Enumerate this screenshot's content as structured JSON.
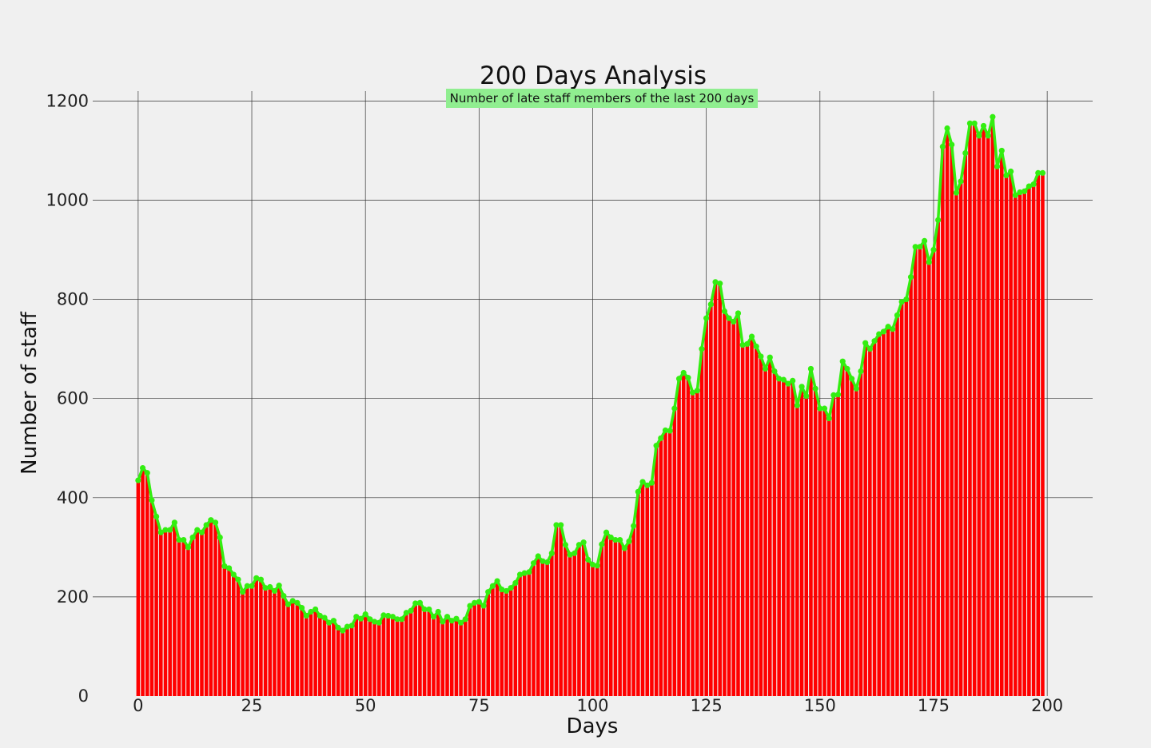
{
  "chart_data": {
    "type": "bar",
    "title": "200 Days Analysis",
    "subtitle": "Number of late staff members of the last 200 days",
    "xlabel": "Days",
    "ylabel": "Number of staff",
    "xlim": [
      -10,
      210
    ],
    "ylim": [
      0,
      1220
    ],
    "xticks": [
      0,
      25,
      50,
      75,
      100,
      125,
      150,
      175,
      200
    ],
    "yticks": [
      0,
      200,
      400,
      600,
      800,
      1000,
      1200
    ],
    "grid": true,
    "bar_color": "#ff0000",
    "line_color": "#33ee11",
    "subtitle_bg": "#90ee90",
    "background": "#f0f0f0",
    "x_start": 0,
    "values": [
      435,
      460,
      450,
      395,
      362,
      330,
      335,
      335,
      350,
      315,
      315,
      300,
      320,
      335,
      330,
      345,
      355,
      350,
      320,
      262,
      258,
      245,
      235,
      210,
      222,
      222,
      238,
      235,
      218,
      220,
      212,
      223,
      202,
      185,
      192,
      188,
      178,
      162,
      170,
      175,
      162,
      158,
      148,
      152,
      138,
      132,
      140,
      142,
      160,
      156,
      165,
      155,
      150,
      148,
      163,
      162,
      160,
      155,
      155,
      168,
      172,
      187,
      188,
      175,
      175,
      160,
      170,
      150,
      160,
      152,
      156,
      148,
      155,
      182,
      188,
      190,
      182,
      210,
      222,
      232,
      215,
      212,
      218,
      228,
      245,
      248,
      250,
      268,
      282,
      272,
      270,
      288,
      345,
      345,
      305,
      285,
      288,
      305,
      310,
      275,
      265,
      263,
      306,
      330,
      320,
      315,
      315,
      298,
      312,
      343,
      412,
      432,
      425,
      430,
      505,
      520,
      536,
      535,
      580,
      640,
      652,
      642,
      612,
      616,
      700,
      762,
      790,
      835,
      832,
      776,
      762,
      755,
      772,
      708,
      710,
      725,
      705,
      685,
      660,
      683,
      655,
      640,
      638,
      630,
      636,
      586,
      624,
      605,
      660,
      620,
      580,
      580,
      560,
      607,
      608,
      675,
      660,
      640,
      620,
      655,
      712,
      700,
      716,
      730,
      735,
      745,
      740,
      768,
      795,
      800,
      845,
      906,
      906,
      918,
      875,
      900,
      960,
      1108,
      1145,
      1112,
      1015,
      1038,
      1095,
      1155,
      1155,
      1130,
      1150,
      1130,
      1168,
      1068,
      1100,
      1050,
      1058,
      1010,
      1016,
      1018,
      1028,
      1032,
      1055,
      1055
    ]
  }
}
